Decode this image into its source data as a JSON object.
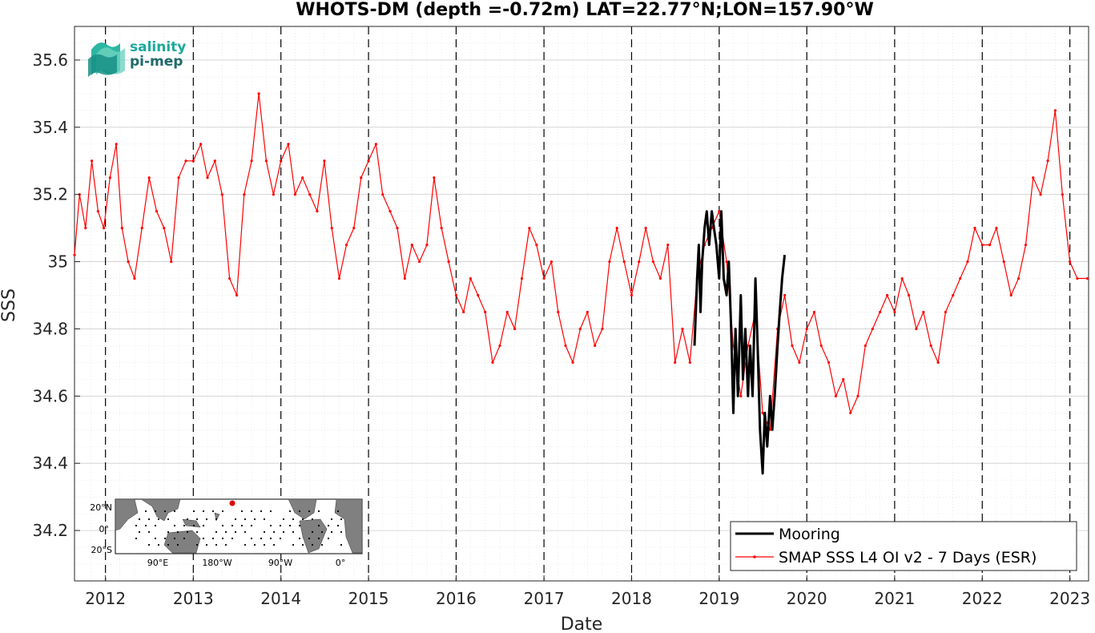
{
  "chart_data": {
    "type": "line",
    "title": "WHOTS-DM (depth =-0.72m) LAT=22.77°N;LON=157.90°W",
    "xlabel": "Date",
    "ylabel": "SSS",
    "xlim": [
      "2011-08-25",
      "2023-03-20"
    ],
    "ylim": [
      34.05,
      35.7
    ],
    "yticks": [
      34.2,
      34.4,
      34.6,
      34.8,
      35,
      35.2,
      35.4,
      35.6
    ],
    "ytick_labels": [
      "34.2",
      "34.4",
      "34.6",
      "34.8",
      "35",
      "35.2",
      "35.4",
      "35.6"
    ],
    "xticks": [
      "2012-01-01",
      "2013-01-01",
      "2014-01-01",
      "2015-01-01",
      "2016-01-01",
      "2017-01-01",
      "2018-01-01",
      "2019-01-01",
      "2020-01-01",
      "2021-01-01",
      "2022-01-01",
      "2023-01-01"
    ],
    "xtick_labels": [
      "2012",
      "2013",
      "2014",
      "2015",
      "2016",
      "2017",
      "2018",
      "2019",
      "2020",
      "2021",
      "2022",
      "2023"
    ],
    "grid": true,
    "minor_grid": true,
    "legend_position": "bottom-right",
    "series": [
      {
        "name": "Mooring",
        "color": "#000000",
        "style": "thick-line",
        "points": [
          [
            "2018-09-20",
            34.75
          ],
          [
            "2018-10-01",
            34.95
          ],
          [
            "2018-10-08",
            35.05
          ],
          [
            "2018-10-15",
            34.85
          ],
          [
            "2018-10-22",
            35.0
          ],
          [
            "2018-11-01",
            35.1
          ],
          [
            "2018-11-10",
            35.15
          ],
          [
            "2018-11-20",
            35.05
          ],
          [
            "2018-12-01",
            35.15
          ],
          [
            "2018-12-10",
            35.1
          ],
          [
            "2018-12-20",
            35.05
          ],
          [
            "2019-01-01",
            34.95
          ],
          [
            "2019-01-10",
            35.15
          ],
          [
            "2019-01-20",
            34.95
          ],
          [
            "2019-02-01",
            34.9
          ],
          [
            "2019-02-10",
            35.0
          ],
          [
            "2019-02-20",
            34.8
          ],
          [
            "2019-03-01",
            34.55
          ],
          [
            "2019-03-10",
            34.8
          ],
          [
            "2019-03-20",
            34.6
          ],
          [
            "2019-04-01",
            34.9
          ],
          [
            "2019-04-10",
            34.65
          ],
          [
            "2019-04-20",
            34.8
          ],
          [
            "2019-05-01",
            34.6
          ],
          [
            "2019-05-10",
            34.75
          ],
          [
            "2019-05-20",
            34.6
          ],
          [
            "2019-06-01",
            34.95
          ],
          [
            "2019-06-10",
            34.75
          ],
          [
            "2019-06-20",
            34.5
          ],
          [
            "2019-07-01",
            34.37
          ],
          [
            "2019-07-10",
            34.55
          ],
          [
            "2019-07-20",
            34.45
          ],
          [
            "2019-08-01",
            34.6
          ],
          [
            "2019-08-10",
            34.5
          ],
          [
            "2019-08-20",
            34.6
          ],
          [
            "2019-09-01",
            34.75
          ],
          [
            "2019-09-10",
            34.85
          ],
          [
            "2019-09-20",
            34.95
          ],
          [
            "2019-10-01",
            35.02
          ]
        ]
      },
      {
        "name": "SMAP SSS L4 OI v2 - 7 Days (ESR)",
        "color": "#ff0000",
        "style": "thin-line-with-dots",
        "points": [
          [
            "2011-08-25",
            35.02
          ],
          [
            "2011-09-15",
            35.2
          ],
          [
            "2011-10-10",
            35.1
          ],
          [
            "2011-11-05",
            35.3
          ],
          [
            "2011-12-01",
            35.15
          ],
          [
            "2011-12-25",
            35.1
          ],
          [
            "2012-01-20",
            35.25
          ],
          [
            "2012-02-15",
            35.35
          ],
          [
            "2012-03-10",
            35.1
          ],
          [
            "2012-04-05",
            35.0
          ],
          [
            "2012-05-01",
            34.95
          ],
          [
            "2012-06-01",
            35.1
          ],
          [
            "2012-07-01",
            35.25
          ],
          [
            "2012-08-01",
            35.15
          ],
          [
            "2012-09-01",
            35.1
          ],
          [
            "2012-10-01",
            35.0
          ],
          [
            "2012-11-01",
            35.25
          ],
          [
            "2012-12-01",
            35.3
          ],
          [
            "2013-01-01",
            35.3
          ],
          [
            "2013-02-01",
            35.35
          ],
          [
            "2013-03-01",
            35.25
          ],
          [
            "2013-04-01",
            35.3
          ],
          [
            "2013-05-01",
            35.2
          ],
          [
            "2013-06-01",
            34.95
          ],
          [
            "2013-07-01",
            34.9
          ],
          [
            "2013-08-01",
            35.2
          ],
          [
            "2013-09-01",
            35.3
          ],
          [
            "2013-10-01",
            35.5
          ],
          [
            "2013-11-01",
            35.3
          ],
          [
            "2013-12-01",
            35.2
          ],
          [
            "2014-01-01",
            35.3
          ],
          [
            "2014-02-01",
            35.35
          ],
          [
            "2014-03-01",
            35.2
          ],
          [
            "2014-04-01",
            35.25
          ],
          [
            "2014-05-01",
            35.2
          ],
          [
            "2014-06-01",
            35.15
          ],
          [
            "2014-07-01",
            35.3
          ],
          [
            "2014-08-01",
            35.1
          ],
          [
            "2014-09-01",
            34.95
          ],
          [
            "2014-10-01",
            35.05
          ],
          [
            "2014-11-01",
            35.1
          ],
          [
            "2014-12-01",
            35.25
          ],
          [
            "2015-01-01",
            35.3
          ],
          [
            "2015-02-01",
            35.35
          ],
          [
            "2015-03-01",
            35.2
          ],
          [
            "2015-04-01",
            35.15
          ],
          [
            "2015-05-01",
            35.1
          ],
          [
            "2015-06-01",
            34.95
          ],
          [
            "2015-07-01",
            35.05
          ],
          [
            "2015-08-01",
            35.0
          ],
          [
            "2015-09-01",
            35.05
          ],
          [
            "2015-10-01",
            35.25
          ],
          [
            "2015-11-01",
            35.1
          ],
          [
            "2015-12-01",
            35.0
          ],
          [
            "2016-01-01",
            34.9
          ],
          [
            "2016-02-01",
            34.85
          ],
          [
            "2016-03-01",
            34.95
          ],
          [
            "2016-04-01",
            34.9
          ],
          [
            "2016-05-01",
            34.85
          ],
          [
            "2016-06-01",
            34.7
          ],
          [
            "2016-07-01",
            34.75
          ],
          [
            "2016-08-01",
            34.85
          ],
          [
            "2016-09-01",
            34.8
          ],
          [
            "2016-10-01",
            34.95
          ],
          [
            "2016-11-01",
            35.1
          ],
          [
            "2016-12-01",
            35.05
          ],
          [
            "2017-01-01",
            34.95
          ],
          [
            "2017-02-01",
            35.0
          ],
          [
            "2017-03-01",
            34.85
          ],
          [
            "2017-04-01",
            34.75
          ],
          [
            "2017-05-01",
            34.7
          ],
          [
            "2017-06-01",
            34.8
          ],
          [
            "2017-07-01",
            34.85
          ],
          [
            "2017-08-01",
            34.75
          ],
          [
            "2017-09-01",
            34.8
          ],
          [
            "2017-10-01",
            35.0
          ],
          [
            "2017-11-01",
            35.1
          ],
          [
            "2017-12-01",
            35.0
          ],
          [
            "2018-01-01",
            34.9
          ],
          [
            "2018-02-01",
            35.0
          ],
          [
            "2018-03-01",
            35.1
          ],
          [
            "2018-04-01",
            35.0
          ],
          [
            "2018-05-01",
            34.95
          ],
          [
            "2018-06-01",
            35.05
          ],
          [
            "2018-07-01",
            34.7
          ],
          [
            "2018-08-01",
            34.8
          ],
          [
            "2018-09-01",
            34.7
          ],
          [
            "2018-10-01",
            34.95
          ],
          [
            "2018-11-01",
            35.05
          ],
          [
            "2018-12-01",
            35.1
          ],
          [
            "2019-01-01",
            35.15
          ],
          [
            "2019-02-01",
            35.0
          ],
          [
            "2019-03-01",
            34.75
          ],
          [
            "2019-04-01",
            34.6
          ],
          [
            "2019-05-01",
            34.75
          ],
          [
            "2019-06-01",
            34.85
          ],
          [
            "2019-07-01",
            34.55
          ],
          [
            "2019-08-01",
            34.5
          ],
          [
            "2019-09-01",
            34.8
          ],
          [
            "2019-10-01",
            34.9
          ],
          [
            "2019-11-01",
            34.75
          ],
          [
            "2019-12-01",
            34.7
          ],
          [
            "2020-01-01",
            34.8
          ],
          [
            "2020-02-01",
            34.85
          ],
          [
            "2020-03-01",
            34.75
          ],
          [
            "2020-04-01",
            34.7
          ],
          [
            "2020-05-01",
            34.6
          ],
          [
            "2020-06-01",
            34.65
          ],
          [
            "2020-07-01",
            34.55
          ],
          [
            "2020-08-01",
            34.6
          ],
          [
            "2020-09-01",
            34.75
          ],
          [
            "2020-10-01",
            34.8
          ],
          [
            "2020-11-01",
            34.85
          ],
          [
            "2020-12-01",
            34.9
          ],
          [
            "2021-01-01",
            34.85
          ],
          [
            "2021-02-01",
            34.95
          ],
          [
            "2021-03-01",
            34.9
          ],
          [
            "2021-04-01",
            34.8
          ],
          [
            "2021-05-01",
            34.85
          ],
          [
            "2021-06-01",
            34.75
          ],
          [
            "2021-07-01",
            34.7
          ],
          [
            "2021-08-01",
            34.85
          ],
          [
            "2021-09-01",
            34.9
          ],
          [
            "2021-10-01",
            34.95
          ],
          [
            "2021-11-01",
            35.0
          ],
          [
            "2021-12-01",
            35.1
          ],
          [
            "2022-01-01",
            35.05
          ],
          [
            "2022-02-01",
            35.05
          ],
          [
            "2022-03-01",
            35.1
          ],
          [
            "2022-04-01",
            35.0
          ],
          [
            "2022-05-01",
            34.9
          ],
          [
            "2022-06-01",
            34.95
          ],
          [
            "2022-07-01",
            35.05
          ],
          [
            "2022-08-01",
            35.25
          ],
          [
            "2022-09-01",
            35.2
          ],
          [
            "2022-10-01",
            35.3
          ],
          [
            "2022-11-01",
            35.45
          ],
          [
            "2022-12-01",
            35.2
          ],
          [
            "2023-01-01",
            35.0
          ],
          [
            "2023-02-01",
            34.95
          ],
          [
            "2023-03-15",
            34.95
          ]
        ]
      }
    ]
  },
  "legend": {
    "items": [
      {
        "label": "Mooring",
        "color": "#000000"
      },
      {
        "label": "SMAP SSS L4 OI v2 - 7 Days (ESR)",
        "color": "#ff0000"
      }
    ]
  },
  "logo": {
    "line1": "salinity",
    "line2": "pi-mep"
  },
  "inset_map": {
    "ylabels": [
      "20°N",
      "0°",
      "20°S"
    ],
    "xlabels": [
      "90°E",
      "180°W",
      "90°W",
      "0°"
    ]
  }
}
